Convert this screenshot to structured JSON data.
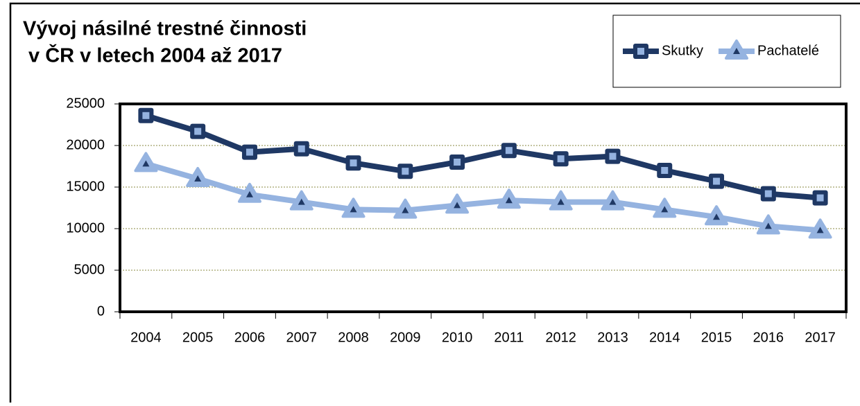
{
  "chart_data": {
    "type": "line",
    "title": [
      "Vývoj násilné trestné činnosti",
      " v ČR v letech 2004 až 2017"
    ],
    "categories": [
      "2004",
      "2005",
      "2006",
      "2007",
      "2008",
      "2009",
      "2010",
      "2011",
      "2012",
      "2013",
      "2014",
      "2015",
      "2016",
      "2017"
    ],
    "series": [
      {
        "name": "Skutky",
        "color": "#1f3864",
        "values": [
          23600,
          21700,
          19200,
          19600,
          17900,
          16900,
          18000,
          19400,
          18400,
          18700,
          17000,
          15700,
          14200,
          13700
        ]
      },
      {
        "name": "Pachatelé",
        "color": "#95b3e0",
        "values": [
          17800,
          16000,
          14100,
          13200,
          12300,
          12200,
          12800,
          13400,
          13200,
          13200,
          12300,
          11400,
          10300,
          9800
        ]
      }
    ],
    "ylim": [
      0,
      25000
    ],
    "yticks": [
      0,
      5000,
      10000,
      15000,
      20000,
      25000
    ],
    "grid": true,
    "legend": "top-right"
  }
}
